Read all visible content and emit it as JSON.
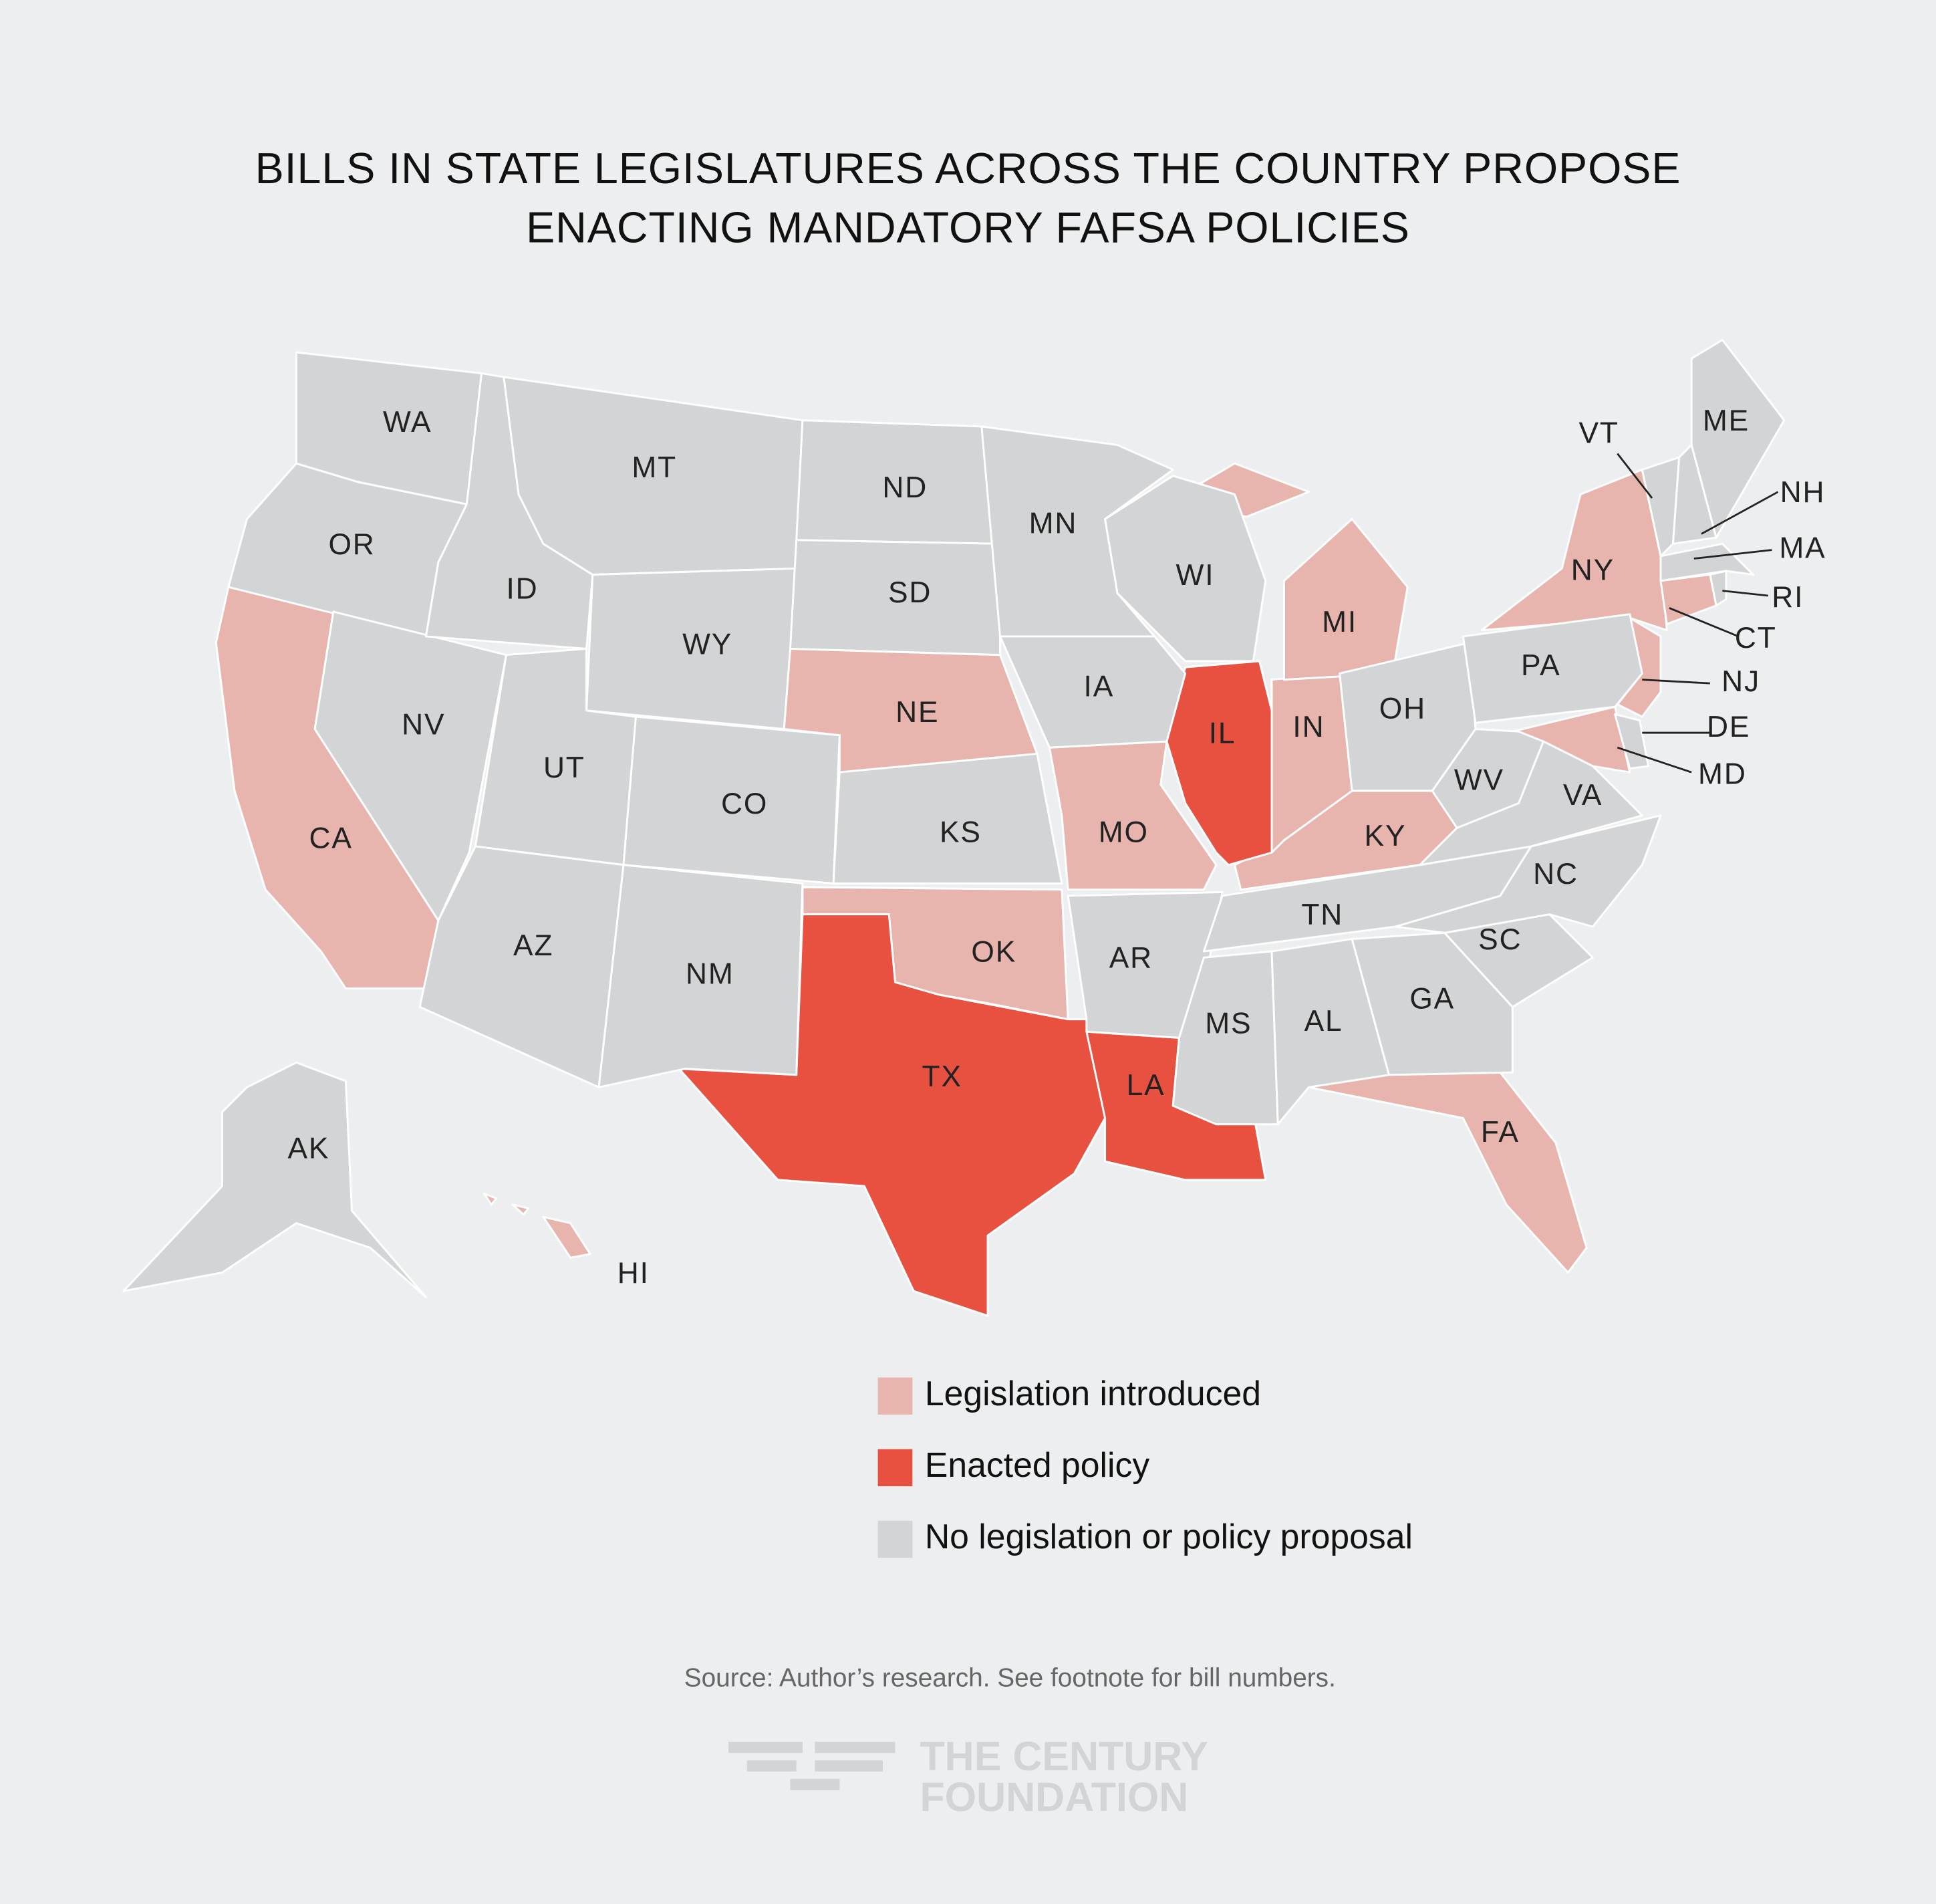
{
  "title": [
    "BILLS IN STATE LEGISLATURES ACROSS THE COUNTRY PROPOSE",
    "ENACTING MANDATORY FAFSA POLICIES"
  ],
  "legend": [
    {
      "label": "Legislation introduced",
      "color": "#e8b5ae",
      "states": [
        "CA",
        "NE",
        "OK",
        "MO",
        "KY",
        "IN",
        "MI",
        "NY",
        "NJ",
        "MD",
        "CT",
        "FA",
        "HI"
      ]
    },
    {
      "label": "Enacted policy",
      "color": "#e85040",
      "states": [
        "TX",
        "LA",
        "IL"
      ]
    },
    {
      "label": "No legislation or policy proposal",
      "color": "#d3d4d6",
      "states": [
        "WA",
        "OR",
        "NV",
        "ID",
        "MT",
        "WY",
        "UT",
        "CO",
        "AZ",
        "NM",
        "ND",
        "SD",
        "KS",
        "MN",
        "IA",
        "AR",
        "WI",
        "MS",
        "AL",
        "GA",
        "SC",
        "NC",
        "TN",
        "VA",
        "WV",
        "OH",
        "PA",
        "DE",
        "MA",
        "RI",
        "VT",
        "NH",
        "ME",
        "AK"
      ]
    }
  ],
  "source": "Source:  Author’s research. See footnote for bill numbers.",
  "logo": [
    "THE CENTURY",
    "FOUNDATION"
  ]
}
